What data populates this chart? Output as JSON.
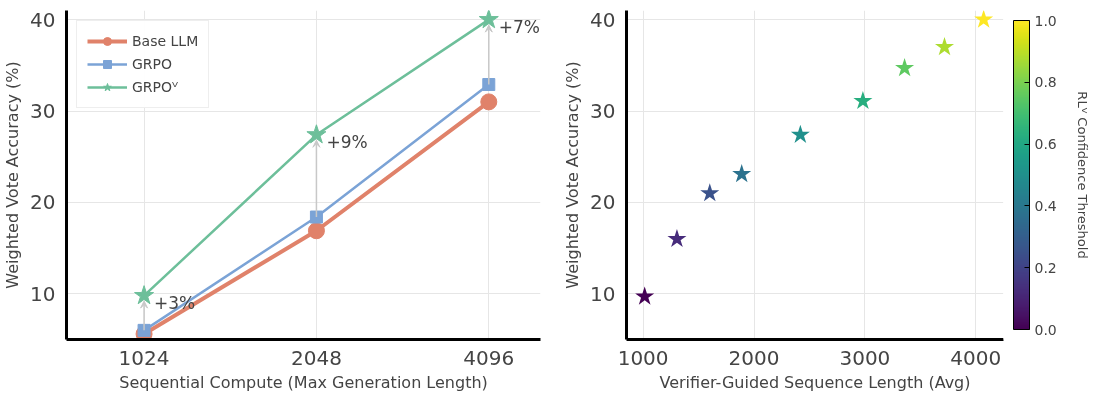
{
  "chart_data": [
    {
      "type": "line",
      "xlabel": "Sequential Compute (Max Generation Length)",
      "ylabel": "Weighted Vote Accuracy (%)",
      "categories": [
        "1024",
        "2048",
        "4096"
      ],
      "ylim": [
        5,
        41
      ],
      "yticks": [
        10,
        20,
        30,
        40
      ],
      "grid": true,
      "legend": "top left",
      "series": [
        {
          "name": "Base LLM",
          "color": "#e0826a",
          "marker": "circle",
          "values": [
            5.6,
            16.9,
            31.0
          ]
        },
        {
          "name": "GRPO",
          "color": "#7ba3d6",
          "marker": "square",
          "values": [
            6.0,
            18.4,
            32.9
          ]
        },
        {
          "name": "GRPOⱽ",
          "color": "#6dbf9a",
          "marker": "star",
          "values": [
            9.8,
            27.4,
            40.0
          ]
        }
      ],
      "annotations": [
        {
          "text": "+3%",
          "x": "1024",
          "y": 9.8
        },
        {
          "text": "+9%",
          "x": "2048",
          "y": 27.4
        },
        {
          "text": "+7%",
          "x": "4096",
          "y": 40.0
        }
      ]
    },
    {
      "type": "scatter",
      "xlabel": "Verifier-Guided Sequence Length (Avg)",
      "ylabel": "Weighted Vote Accuracy (%)",
      "clabel": "RLⱽ Confidence Threshold",
      "marker": "star",
      "grid": true,
      "x": [
        1014,
        1305,
        1601,
        1889,
        2418,
        2982,
        3358,
        3718,
        4071
      ],
      "values": [
        9.7,
        16.0,
        21.0,
        23.1,
        27.4,
        31.1,
        34.7,
        37.0,
        40.0
      ],
      "cvalues": [
        0,
        0.125,
        0.25,
        0.375,
        0.5,
        0.625,
        0.75,
        0.875,
        1.0
      ],
      "xlim": [
        850,
        4250
      ],
      "xticks": [
        1000,
        2000,
        3000,
        4000
      ],
      "ylim": [
        5,
        41
      ],
      "yticks": [
        10,
        20,
        30,
        40
      ],
      "clim": [
        0,
        1
      ],
      "cticks": [
        {
          "value": 0,
          "label": "0.0"
        },
        0.2,
        0.4,
        0.6,
        0.8,
        {
          "value": 1,
          "label": "1.0"
        }
      ]
    }
  ]
}
